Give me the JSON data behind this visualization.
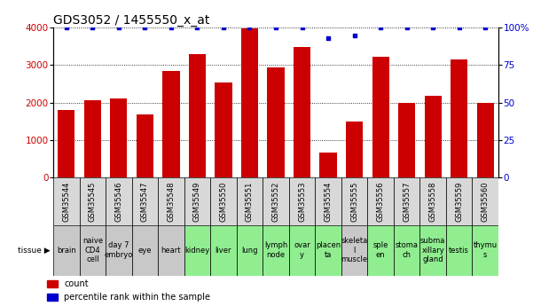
{
  "title": "GDS3052 / 1455550_x_at",
  "gsm_labels": [
    "GSM35544",
    "GSM35545",
    "GSM35546",
    "GSM35547",
    "GSM35548",
    "GSM35549",
    "GSM35550",
    "GSM35551",
    "GSM35552",
    "GSM35553",
    "GSM35554",
    "GSM35555",
    "GSM35556",
    "GSM35557",
    "GSM35558",
    "GSM35559",
    "GSM35560"
  ],
  "tissue_labels": [
    "brain",
    "naive\nCD4\ncell",
    "day 7\nembryо",
    "eye",
    "heart",
    "kidney",
    "liver",
    "lung",
    "lymph\nnode",
    "ovar\ny",
    "placen\nta",
    "skeleta\nl\nmuscle",
    "sple\nen",
    "stoma\nch",
    "subma\nxillary\ngland",
    "testis",
    "thymu\ns"
  ],
  "tissue_colors": [
    "#c8c8c8",
    "#c8c8c8",
    "#c8c8c8",
    "#c8c8c8",
    "#c8c8c8",
    "#90ee90",
    "#90ee90",
    "#90ee90",
    "#90ee90",
    "#90ee90",
    "#90ee90",
    "#c8c8c8",
    "#90ee90",
    "#90ee90",
    "#90ee90",
    "#90ee90",
    "#90ee90"
  ],
  "bar_values": [
    1800,
    2070,
    2110,
    1680,
    2840,
    3290,
    2530,
    3980,
    2930,
    3490,
    670,
    1490,
    3210,
    1990,
    2170,
    3160,
    2000
  ],
  "percentile_values": [
    100,
    100,
    100,
    100,
    100,
    100,
    100,
    100,
    100,
    100,
    93,
    95,
    100,
    100,
    100,
    100,
    100
  ],
  "bar_color": "#cc0000",
  "dot_color": "#0000cc",
  "ylim_left": [
    0,
    4000
  ],
  "ylim_right": [
    0,
    100
  ],
  "yticks_left": [
    0,
    1000,
    2000,
    3000,
    4000
  ],
  "yticks_right": [
    0,
    25,
    50,
    75,
    100
  ],
  "ytick_labels_right": [
    "0",
    "25",
    "50",
    "75",
    "100%"
  ],
  "bg_color": "#ffffff",
  "grid_color": "#000000",
  "title_fontsize": 10,
  "tick_fontsize": 6.5,
  "tissue_fontsize": 6,
  "gsm_fontsize": 6
}
